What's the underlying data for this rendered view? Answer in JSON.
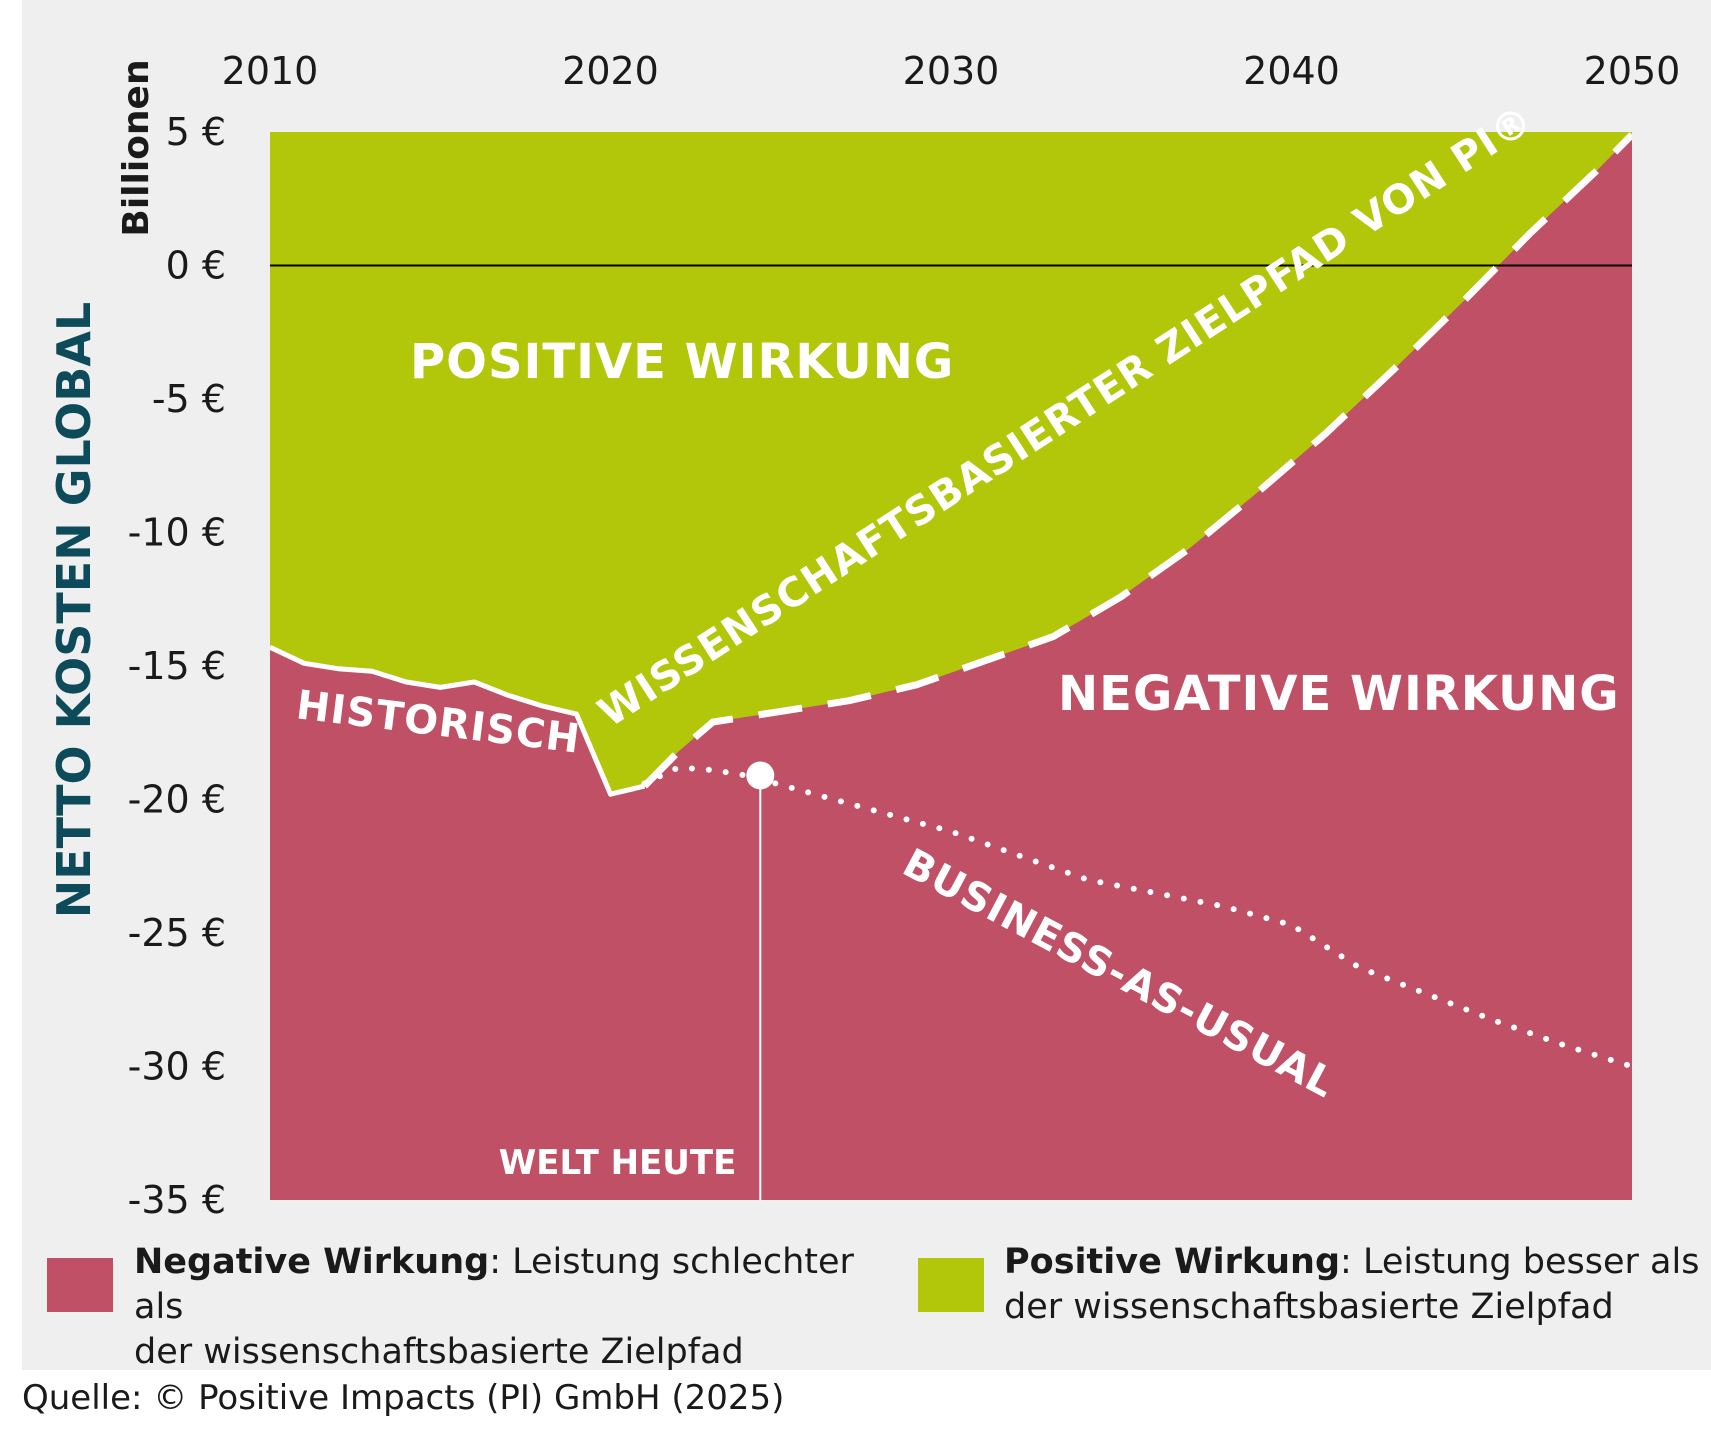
{
  "chart_data": {
    "type": "area",
    "title": "",
    "ylabel": "NETTO KOSTEN GLOBAL",
    "yunit": "Billionen",
    "xlim": [
      2010,
      2050
    ],
    "ylim": [
      -35,
      5
    ],
    "x_ticks": [
      "2010",
      "2020",
      "2030",
      "2040",
      "2050"
    ],
    "y_ticks": [
      "5 €",
      "0 €",
      "-5 €",
      "-10 €",
      "-15 €",
      "-20 €",
      "-25 €",
      "-30 €",
      "-35 €"
    ],
    "series": [
      {
        "name": "HISTORISCH",
        "style": "solid",
        "x": [
          2010,
          2011,
          2012,
          2013,
          2014,
          2015,
          2016,
          2017,
          2018,
          2019,
          2020,
          2021
        ],
        "y": [
          -14.3,
          -14.9,
          -15.1,
          -15.2,
          -15.6,
          -15.8,
          -15.6,
          -16.1,
          -16.5,
          -16.8,
          -19.8,
          -19.5
        ]
      },
      {
        "name": "WISSENSCHAFTSBASIERTER ZIELPFAD VON PI®",
        "style": "dashed",
        "x": [
          2021,
          2022,
          2023,
          2025,
          2027,
          2029,
          2031,
          2033,
          2035,
          2037,
          2039,
          2041,
          2043,
          2045,
          2047,
          2049,
          2050
        ],
        "y": [
          -19.5,
          -18.2,
          -17.1,
          -16.7,
          -16.3,
          -15.7,
          -14.8,
          -13.9,
          -12.4,
          -10.6,
          -8.5,
          -6.3,
          -3.9,
          -1.4,
          1.2,
          3.6,
          4.9
        ]
      },
      {
        "name": "BUSINESS-AS-USUAL",
        "style": "dotted",
        "x": [
          2021,
          2022,
          2023,
          2024,
          2026,
          2028,
          2030,
          2032,
          2034,
          2036,
          2038,
          2040,
          2042,
          2044,
          2046,
          2048,
          2050
        ],
        "y": [
          -19.4,
          -18.8,
          -18.9,
          -19.1,
          -19.8,
          -20.5,
          -21.2,
          -22.1,
          -23.0,
          -23.5,
          -24.0,
          -24.7,
          -26.3,
          -27.3,
          -28.3,
          -29.2,
          -30.0
        ]
      }
    ],
    "regions": {
      "positive": {
        "label": "POSITIVE WIRKUNG",
        "color": "#b2c70a"
      },
      "negative": {
        "label": "NEGATIVE WIRKUNG",
        "color": "#bf5066"
      }
    },
    "marker": {
      "x": 2024.4,
      "y": -19.1,
      "label": "WELT HEUTE"
    },
    "zero_line": 0
  },
  "legend": {
    "negative": {
      "term": "Negative Wirkung",
      "line1": ": Leistung schlechter als",
      "line2": "der wissenschaftsbasierte Zielpfad",
      "color": "#bf5066"
    },
    "positive": {
      "term": "Positive Wirkung",
      "line1": ": Leistung besser als",
      "line2": "der wissenschaftsbasierte Zielpfad",
      "color": "#b2c70a"
    }
  },
  "source": "Quelle: © Positive Impacts (PI) GmbH (2025)",
  "colors": {
    "ylabel": "#0e4b5a",
    "panel": "#efefef",
    "text": "#1a1a1a"
  }
}
